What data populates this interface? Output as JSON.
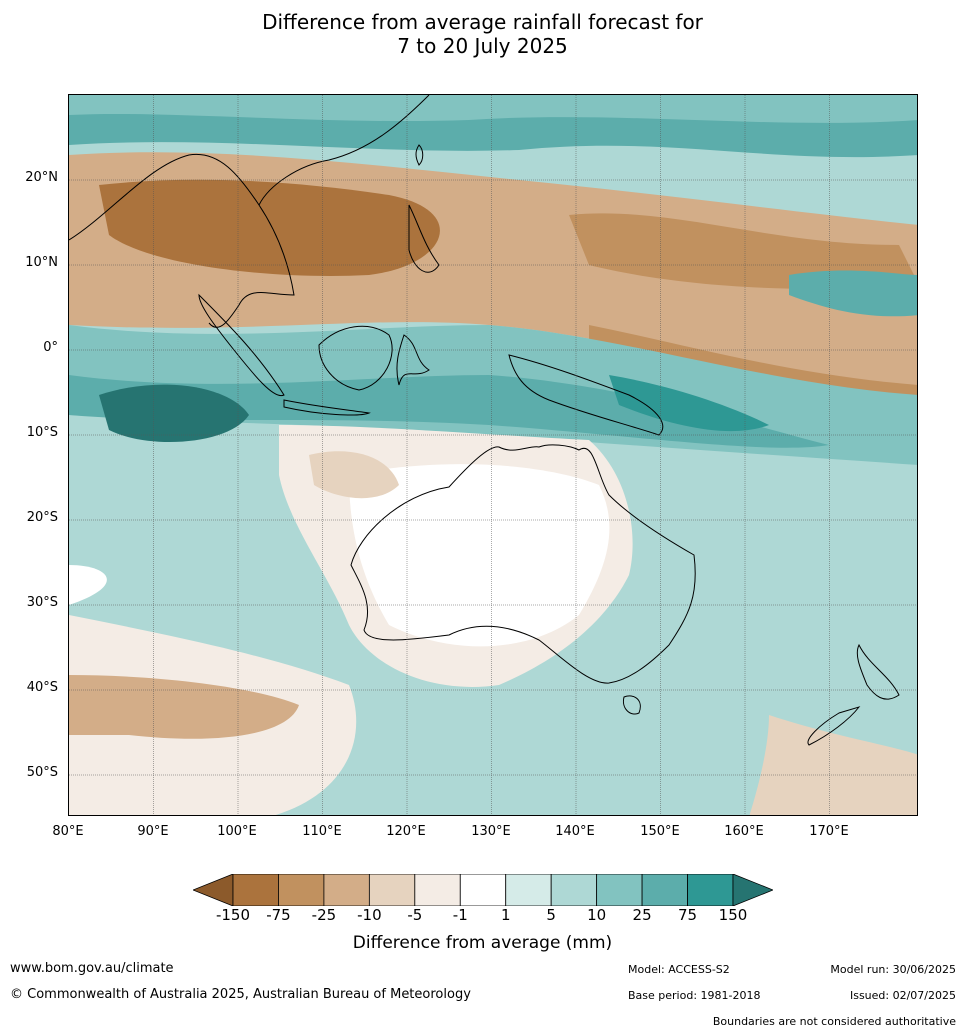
{
  "title_line1": "Difference from average rainfall forecast for",
  "title_line2": "7 to 20 July 2025",
  "lat_labels": [
    "20°N",
    "10°N",
    "0°",
    "10°S",
    "20°S",
    "30°S",
    "40°S",
    "50°S"
  ],
  "lon_labels": [
    "80°E",
    "90°E",
    "100°E",
    "110°E",
    "120°E",
    "130°E",
    "140°E",
    "150°E",
    "160°E",
    "170°E"
  ],
  "colorbar": {
    "ticks": [
      "-150",
      "-75",
      "-25",
      "-10",
      "-5",
      "-1",
      "1",
      "5",
      "10",
      "25",
      "75",
      "150"
    ],
    "colors": [
      "#8c5a2b",
      "#ab733d",
      "#c1915f",
      "#d3ad88",
      "#e6d3bf",
      "#f4ece5",
      "#ffffff",
      "#d5ebe8",
      "#aed8d5",
      "#82c3c0",
      "#5cadab",
      "#2e9894",
      "#267471"
    ],
    "label": "Difference from average (mm)"
  },
  "footer": {
    "url": "www.bom.gov.au/climate",
    "copyright": "© Commonwealth of Australia 2025, Australian Bureau of Meteorology",
    "model": "Model: ACCESS-S2",
    "base_period": "Base period: 1981-2018",
    "model_run": "Model run: 30/06/2025",
    "issued": "Issued: 02/07/2025",
    "disclaimer": "Boundaries are not considered authoritative"
  }
}
